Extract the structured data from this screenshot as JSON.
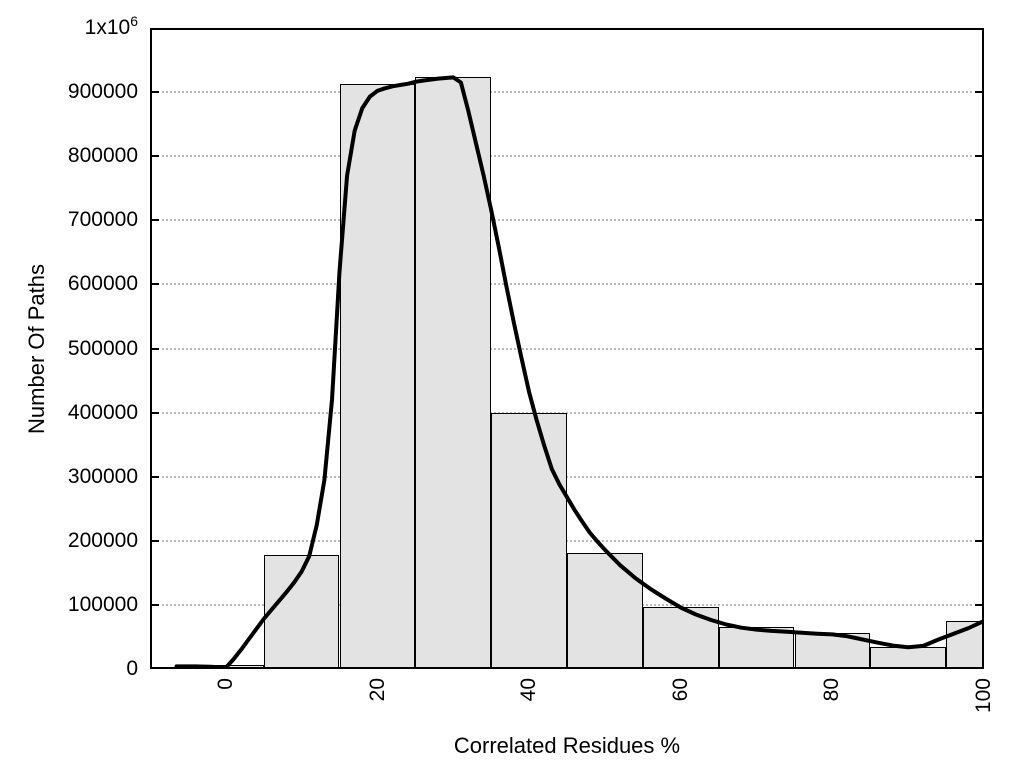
{
  "chart_data": {
    "type": "histogram_with_smooth_line",
    "title": "",
    "xlabel": "Correlated Residues %",
    "ylabel": "Number Of Paths",
    "xlim": [
      -10,
      100
    ],
    "ylim": [
      0,
      1000000
    ],
    "grid": {
      "horizontal": "dotted",
      "vertical": "none"
    },
    "legend": "none",
    "x_ticks": [
      {
        "value": 0,
        "label": "0"
      },
      {
        "value": 20,
        "label": "20"
      },
      {
        "value": 40,
        "label": "40"
      },
      {
        "value": 60,
        "label": "60"
      },
      {
        "value": 80,
        "label": "80"
      },
      {
        "value": 100,
        "label": "100"
      }
    ],
    "y_ticks": [
      {
        "value": 0,
        "label": "0"
      },
      {
        "value": 100000,
        "label": "100000"
      },
      {
        "value": 200000,
        "label": "200000"
      },
      {
        "value": 300000,
        "label": "300000"
      },
      {
        "value": 400000,
        "label": "400000"
      },
      {
        "value": 500000,
        "label": "500000"
      },
      {
        "value": 600000,
        "label": "600000"
      },
      {
        "value": 700000,
        "label": "700000"
      },
      {
        "value": 800000,
        "label": "800000"
      },
      {
        "value": 900000,
        "label": "900000"
      },
      {
        "value": 1000000,
        "label": "1x10^6"
      }
    ],
    "bars": [
      [
        -5,
        5,
        6000
      ],
      [
        5,
        15,
        178000
      ],
      [
        15,
        25,
        912000
      ],
      [
        25,
        35,
        923000
      ],
      [
        35,
        45,
        400000
      ],
      [
        45,
        55,
        181000
      ],
      [
        55,
        65,
        97000
      ],
      [
        65,
        75,
        65000
      ],
      [
        75,
        85,
        57000
      ],
      [
        85,
        95,
        34000
      ],
      [
        95,
        100,
        75000
      ]
    ],
    "curve_points": [
      [
        -6.5,
        4000
      ],
      [
        -4,
        4000
      ],
      [
        -2,
        3400
      ],
      [
        0,
        2000
      ],
      [
        1,
        15000
      ],
      [
        2,
        30000
      ],
      [
        3,
        46000
      ],
      [
        4,
        62000
      ],
      [
        5,
        78000
      ],
      [
        6,
        92000
      ],
      [
        7,
        106000
      ],
      [
        8,
        120000
      ],
      [
        9,
        135000
      ],
      [
        10,
        152000
      ],
      [
        11,
        176000
      ],
      [
        12,
        225000
      ],
      [
        13,
        295000
      ],
      [
        14,
        420000
      ],
      [
        15,
        620000
      ],
      [
        16,
        770000
      ],
      [
        17,
        840000
      ],
      [
        18,
        875000
      ],
      [
        19,
        893000
      ],
      [
        20,
        902000
      ],
      [
        21,
        906000
      ],
      [
        22,
        909000
      ],
      [
        23,
        911000
      ],
      [
        24,
        913000
      ],
      [
        25,
        916000
      ],
      [
        26,
        918000
      ],
      [
        28,
        921000
      ],
      [
        30,
        923000
      ],
      [
        31,
        915000
      ],
      [
        32,
        870000
      ],
      [
        33,
        820000
      ],
      [
        34,
        770000
      ],
      [
        35,
        716000
      ],
      [
        36,
        658000
      ],
      [
        37,
        598000
      ],
      [
        38,
        540000
      ],
      [
        39,
        485000
      ],
      [
        40,
        432000
      ],
      [
        41,
        388000
      ],
      [
        42,
        348000
      ],
      [
        43,
        312000
      ],
      [
        44,
        288000
      ],
      [
        45,
        268000
      ],
      [
        46,
        248000
      ],
      [
        47,
        230000
      ],
      [
        48,
        213000
      ],
      [
        49,
        199000
      ],
      [
        50,
        186000
      ],
      [
        52,
        162000
      ],
      [
        54,
        142000
      ],
      [
        56,
        125000
      ],
      [
        58,
        110000
      ],
      [
        60,
        96000
      ],
      [
        62,
        85000
      ],
      [
        64,
        76500
      ],
      [
        66,
        69500
      ],
      [
        68,
        64500
      ],
      [
        70,
        61500
      ],
      [
        72,
        59500
      ],
      [
        74,
        58000
      ],
      [
        76,
        56500
      ],
      [
        78,
        55000
      ],
      [
        80,
        54000
      ],
      [
        82,
        51000
      ],
      [
        84,
        46000
      ],
      [
        86,
        41000
      ],
      [
        88,
        36500
      ],
      [
        90,
        34000
      ],
      [
        92,
        36000
      ],
      [
        94,
        46000
      ],
      [
        96,
        55000
      ],
      [
        98,
        64000
      ],
      [
        100,
        75000
      ]
    ],
    "colors": {
      "background": "#ffffff",
      "bar_fill": "#e3e3e3",
      "bar_border": "#000000",
      "curve": "#000000",
      "grid_dots": "#b9b9b9",
      "text": "#000000"
    }
  }
}
